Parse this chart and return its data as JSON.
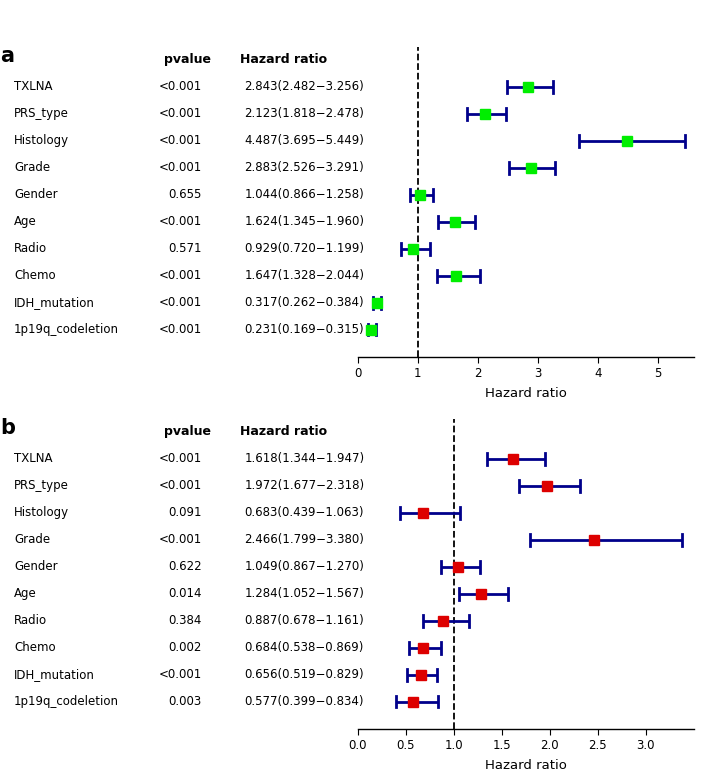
{
  "panel_a": {
    "rows": [
      {
        "label": "TXLNA",
        "pvalue": "<0.001",
        "hr_text": "2.843(2.482−3.256)",
        "hr": 2.843,
        "lo": 2.482,
        "hi": 3.256,
        "color": "#00ee00"
      },
      {
        "label": "PRS_type",
        "pvalue": "<0.001",
        "hr_text": "2.123(1.818−2.478)",
        "hr": 2.123,
        "lo": 1.818,
        "hi": 2.478,
        "color": "#00ee00"
      },
      {
        "label": "Histology",
        "pvalue": "<0.001",
        "hr_text": "4.487(3.695−5.449)",
        "hr": 4.487,
        "lo": 3.695,
        "hi": 5.449,
        "color": "#00ee00"
      },
      {
        "label": "Grade",
        "pvalue": "<0.001",
        "hr_text": "2.883(2.526−3.291)",
        "hr": 2.883,
        "lo": 2.526,
        "hi": 3.291,
        "color": "#00ee00"
      },
      {
        "label": "Gender",
        "pvalue": "0.655",
        "hr_text": "1.044(0.866−1.258)",
        "hr": 1.044,
        "lo": 0.866,
        "hi": 1.258,
        "color": "#00ee00"
      },
      {
        "label": "Age",
        "pvalue": "<0.001",
        "hr_text": "1.624(1.345−1.960)",
        "hr": 1.624,
        "lo": 1.345,
        "hi": 1.96,
        "color": "#00ee00"
      },
      {
        "label": "Radio",
        "pvalue": "0.571",
        "hr_text": "0.929(0.720−1.199)",
        "hr": 0.929,
        "lo": 0.72,
        "hi": 1.199,
        "color": "#00ee00"
      },
      {
        "label": "Chemo",
        "pvalue": "<0.001",
        "hr_text": "1.647(1.328−2.044)",
        "hr": 1.647,
        "lo": 1.328,
        "hi": 2.044,
        "color": "#00ee00"
      },
      {
        "label": "IDH_mutation",
        "pvalue": "<0.001",
        "hr_text": "0.317(0.262−0.384)",
        "hr": 0.317,
        "lo": 0.262,
        "hi": 0.384,
        "color": "#00ee00"
      },
      {
        "label": "1p19q_codeletion",
        "pvalue": "<0.001",
        "hr_text": "0.231(0.169−0.315)",
        "hr": 0.231,
        "lo": 0.169,
        "hi": 0.315,
        "color": "#00ee00"
      }
    ],
    "xlim": [
      0,
      5.6
    ],
    "xticks": [
      0,
      1,
      2,
      3,
      4,
      5
    ],
    "xtick_labels": [
      "0",
      "1",
      "2",
      "3",
      "4",
      "5"
    ],
    "xlabel": "Hazard ratio",
    "ref_line": 1.0,
    "panel_label": "a"
  },
  "panel_b": {
    "rows": [
      {
        "label": "TXLNA",
        "pvalue": "<0.001",
        "hr_text": "1.618(1.344−1.947)",
        "hr": 1.618,
        "lo": 1.344,
        "hi": 1.947,
        "color": "#dd0000"
      },
      {
        "label": "PRS_type",
        "pvalue": "<0.001",
        "hr_text": "1.972(1.677−2.318)",
        "hr": 1.972,
        "lo": 1.677,
        "hi": 2.318,
        "color": "#dd0000"
      },
      {
        "label": "Histology",
        "pvalue": "0.091",
        "hr_text": "0.683(0.439−1.063)",
        "hr": 0.683,
        "lo": 0.439,
        "hi": 1.063,
        "color": "#dd0000"
      },
      {
        "label": "Grade",
        "pvalue": "<0.001",
        "hr_text": "2.466(1.799−3.380)",
        "hr": 2.466,
        "lo": 1.799,
        "hi": 3.38,
        "color": "#dd0000"
      },
      {
        "label": "Gender",
        "pvalue": "0.622",
        "hr_text": "1.049(0.867−1.270)",
        "hr": 1.049,
        "lo": 0.867,
        "hi": 1.27,
        "color": "#dd0000"
      },
      {
        "label": "Age",
        "pvalue": "0.014",
        "hr_text": "1.284(1.052−1.567)",
        "hr": 1.284,
        "lo": 1.052,
        "hi": 1.567,
        "color": "#dd0000"
      },
      {
        "label": "Radio",
        "pvalue": "0.384",
        "hr_text": "0.887(0.678−1.161)",
        "hr": 0.887,
        "lo": 0.678,
        "hi": 1.161,
        "color": "#dd0000"
      },
      {
        "label": "Chemo",
        "pvalue": "0.002",
        "hr_text": "0.684(0.538−0.869)",
        "hr": 0.684,
        "lo": 0.538,
        "hi": 0.869,
        "color": "#dd0000"
      },
      {
        "label": "IDH_mutation",
        "pvalue": "<0.001",
        "hr_text": "0.656(0.519−0.829)",
        "hr": 0.656,
        "lo": 0.519,
        "hi": 0.829,
        "color": "#dd0000"
      },
      {
        "label": "1p19q_codeletion",
        "pvalue": "0.003",
        "hr_text": "0.577(0.399−0.834)",
        "hr": 0.577,
        "lo": 0.399,
        "hi": 0.834,
        "color": "#dd0000"
      }
    ],
    "xlim": [
      0.0,
      3.5
    ],
    "xticks": [
      0.0,
      0.5,
      1.0,
      1.5,
      2.0,
      2.5,
      3.0
    ],
    "xtick_labels": [
      "0.0",
      "0.5",
      "1.0",
      "1.5",
      "2.0",
      "2.5",
      "3.0"
    ],
    "xlabel": "Hazard ratio",
    "ref_line": 1.0,
    "panel_label": "b"
  },
  "line_color": "#00008b",
  "marker_size": 7,
  "font_size": 8.5,
  "header_font_size": 9,
  "panel_label_font_size": 15,
  "bg_color": "#ffffff"
}
